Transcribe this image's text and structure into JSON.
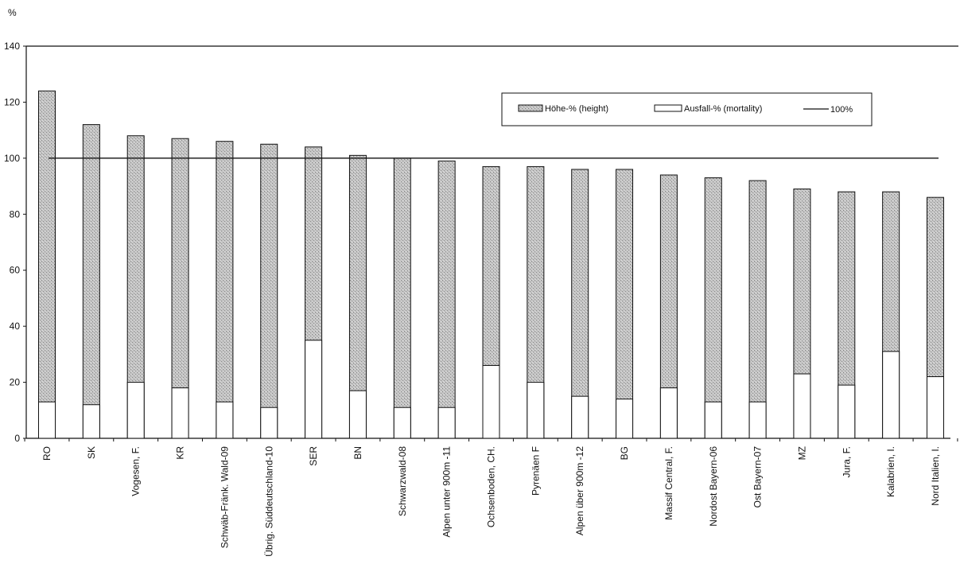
{
  "chart_data": {
    "type": "bar",
    "title": "",
    "ylabel": "%",
    "xlabel": "",
    "ylim": [
      0,
      140
    ],
    "yticks": [
      0,
      20,
      40,
      60,
      80,
      100,
      120,
      140
    ],
    "grid": false,
    "legend_position": "top-right",
    "reference_line": {
      "value": 100,
      "label": "100%"
    },
    "categories": [
      "RO",
      "SK",
      "Vogesen, F.",
      "KR",
      "Schwäb-Fränk. Wald-09",
      "Übrig. Süddeutschland-10",
      "SER",
      "BN",
      "Schwarzwald-08",
      "Alpen unter 900m -11",
      "Ochsenboden, CH.",
      "Pyrenäen F",
      "Alpen über 900m -12",
      "BG",
      "Massif Central, F.",
      "Nordost Bayern-06",
      "Ost Bayern-07",
      "MZ",
      "Jura, F.",
      "Kalabrien, I.",
      "Nord Italien, I."
    ],
    "series": [
      {
        "name": "Höhe-% (height)",
        "values": [
          124,
          112,
          108,
          107,
          106,
          105,
          104,
          101,
          100,
          99,
          97,
          97,
          96,
          96,
          94,
          93,
          92,
          89,
          88,
          88,
          86
        ]
      },
      {
        "name": "Ausfall-% (mortality)",
        "values": [
          13,
          12,
          20,
          18,
          13,
          11,
          35,
          17,
          11,
          11,
          26,
          20,
          15,
          14,
          18,
          13,
          13,
          23,
          19,
          31,
          22
        ]
      }
    ],
    "legend": [
      "Höhe-% (height)",
      "Ausfall-% (mortality)",
      "100%"
    ],
    "colors": {
      "height_fill": "#bcbcbc",
      "mortality_fill": "#ffffff",
      "stroke": "#111111",
      "line": "#111111"
    }
  }
}
